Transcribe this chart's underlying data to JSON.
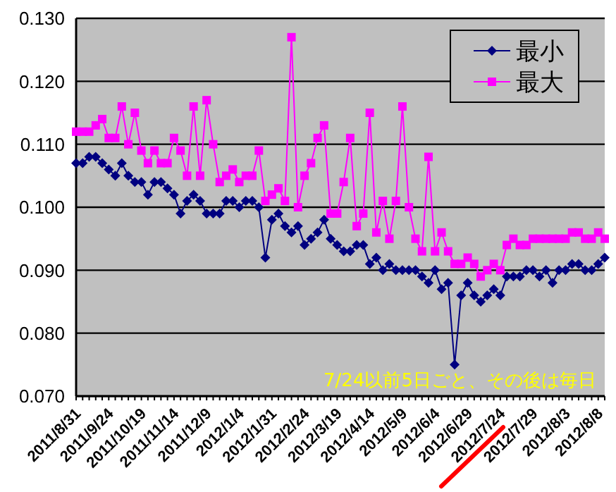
{
  "chart_data": {
    "type": "line",
    "categories": [
      "2011/8/31",
      null,
      null,
      null,
      null,
      "2011/9/24",
      null,
      null,
      null,
      null,
      "2011/10/19",
      null,
      null,
      null,
      null,
      "2011/11/14",
      null,
      null,
      null,
      null,
      "2011/12/9",
      null,
      null,
      null,
      null,
      "2012/1/4",
      null,
      null,
      null,
      null,
      "2012/1/31",
      null,
      null,
      null,
      null,
      "2012/2/24",
      null,
      null,
      null,
      null,
      "2012/3/19",
      null,
      null,
      null,
      null,
      "2012/4/14",
      null,
      null,
      null,
      null,
      "2012/5/9",
      null,
      null,
      null,
      null,
      "2012/6/4",
      null,
      null,
      null,
      null,
      "2012/6/29",
      null,
      null,
      null,
      null,
      "2012/7/24",
      null,
      null,
      null,
      null,
      "2012/7/29",
      null,
      null,
      null,
      null,
      "2012/8/3",
      null,
      null,
      null,
      null,
      "2012/8/8",
      null
    ],
    "series": [
      {
        "name": "最小",
        "color": "#000080",
        "marker": "diamond",
        "values": [
          0.107,
          0.107,
          0.108,
          0.108,
          0.107,
          0.106,
          0.105,
          0.107,
          0.105,
          0.104,
          0.104,
          0.102,
          0.104,
          0.104,
          0.103,
          0.102,
          0.099,
          0.101,
          0.102,
          0.101,
          0.099,
          0.099,
          0.099,
          0.101,
          0.101,
          0.1,
          0.101,
          0.101,
          0.1,
          0.092,
          0.098,
          0.099,
          0.097,
          0.096,
          0.097,
          0.094,
          0.095,
          0.096,
          0.098,
          0.095,
          0.094,
          0.093,
          0.093,
          0.094,
          0.094,
          0.091,
          0.092,
          0.09,
          0.091,
          0.09,
          0.09,
          0.09,
          0.09,
          0.089,
          0.088,
          0.09,
          0.087,
          0.088,
          0.075,
          0.086,
          0.088,
          0.086,
          0.085,
          0.086,
          0.087,
          0.086,
          0.089,
          0.089,
          0.089,
          0.09,
          0.09,
          0.089,
          0.09,
          0.088,
          0.09,
          0.09,
          0.091,
          0.091,
          0.09,
          0.09,
          0.091,
          0.092
        ]
      },
      {
        "name": "最大",
        "color": "#ff00ff",
        "marker": "square",
        "values": [
          0.112,
          0.112,
          0.112,
          0.113,
          0.114,
          0.111,
          0.111,
          0.116,
          0.11,
          0.115,
          0.109,
          0.107,
          0.109,
          0.107,
          0.107,
          0.111,
          0.109,
          0.105,
          0.116,
          0.105,
          0.117,
          0.11,
          0.104,
          0.105,
          0.106,
          0.104,
          0.105,
          0.105,
          0.109,
          0.101,
          0.102,
          0.103,
          0.101,
          0.127,
          0.1,
          0.105,
          0.107,
          0.111,
          0.113,
          0.099,
          0.099,
          0.104,
          0.111,
          0.097,
          0.099,
          0.115,
          0.096,
          0.101,
          0.095,
          0.101,
          0.116,
          0.1,
          0.095,
          0.093,
          0.108,
          0.093,
          0.096,
          0.093,
          0.091,
          0.091,
          0.092,
          0.091,
          0.089,
          0.09,
          0.091,
          0.09,
          0.094,
          0.095,
          0.094,
          0.094,
          0.095,
          0.095,
          0.095,
          0.095,
          0.095,
          0.095,
          0.096,
          0.096,
          0.095,
          0.095,
          0.096,
          0.095
        ]
      }
    ],
    "ylim": [
      0.07,
      0.13
    ],
    "yticks": [
      {
        "value": 0.07,
        "label": "0.070"
      },
      {
        "value": 0.08,
        "label": "0.080"
      },
      {
        "value": 0.09,
        "label": "0.090"
      },
      {
        "value": 0.1,
        "label": "0.100"
      },
      {
        "value": 0.11,
        "label": "0.110"
      },
      {
        "value": 0.12,
        "label": "0.120"
      },
      {
        "value": 0.13,
        "label": "0.130"
      }
    ],
    "grid": "y",
    "legend": "top right",
    "annotations": [
      "7/24以前5日ごと、その後は毎日"
    ]
  }
}
